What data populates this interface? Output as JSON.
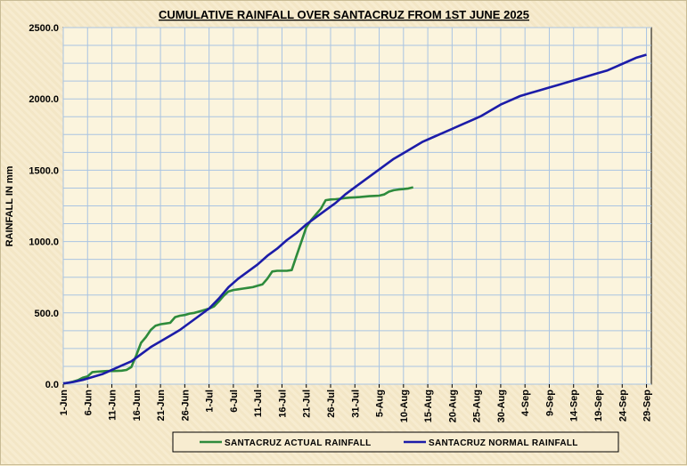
{
  "chart_data": {
    "type": "line",
    "title": "CUMULATIVE RAINFALL OVER SANTACRUZ FROM 1ST JUNE 2025",
    "xlabel": "",
    "ylabel": "RAINFALL IN mm",
    "ylim": [
      0,
      2500
    ],
    "yticks": [
      "0.0",
      "500.0",
      "1000.0",
      "1500.0",
      "2000.0",
      "2500.0"
    ],
    "x_range_days": [
      0,
      121
    ],
    "xtick_labels": [
      "1-Jun",
      "6-Jun",
      "11-Jun",
      "16-Jun",
      "21-Jun",
      "26-Jun",
      "1-Jul",
      "6-Jul",
      "11-Jul",
      "16-Jul",
      "21-Jul",
      "26-Jul",
      "31-Jul",
      "5-Aug",
      "10-Aug",
      "15-Aug",
      "20-Aug",
      "25-Aug",
      "30-Aug",
      "4-Sep",
      "9-Sep",
      "14-Sep",
      "19-Sep",
      "24-Sep",
      "29-Sep"
    ],
    "grid": true,
    "legend_position": "bottom",
    "series": [
      {
        "name": "SANTACRUZ  ACTUAL RAINFALL",
        "color": "#2e8b3c",
        "x": [
          0,
          1,
          2,
          3,
          4,
          5,
          6,
          7,
          8,
          9,
          10,
          11,
          12,
          13,
          14,
          15,
          16,
          17,
          18,
          19,
          20,
          21,
          22,
          23,
          24,
          25,
          26,
          27,
          28,
          29,
          30,
          31,
          32,
          33,
          34,
          35,
          36,
          37,
          38,
          39,
          40,
          41,
          42,
          43,
          44,
          45,
          46,
          47,
          48,
          49,
          50,
          51,
          52,
          53,
          54,
          55,
          56,
          57,
          58,
          59,
          60,
          61,
          62,
          63,
          64,
          65,
          66,
          67,
          68,
          69,
          70,
          71,
          72
        ],
        "y": [
          5,
          10,
          18,
          28,
          45,
          55,
          85,
          88,
          90,
          92,
          92,
          93,
          95,
          100,
          120,
          200,
          290,
          330,
          380,
          410,
          420,
          425,
          430,
          470,
          480,
          485,
          495,
          500,
          510,
          520,
          530,
          545,
          580,
          620,
          650,
          660,
          665,
          670,
          675,
          680,
          690,
          700,
          740,
          790,
          795,
          795,
          795,
          800,
          900,
          1000,
          1100,
          1150,
          1190,
          1230,
          1290,
          1295,
          1297,
          1300,
          1305,
          1308,
          1310,
          1312,
          1315,
          1318,
          1320,
          1322,
          1330,
          1350,
          1360,
          1365,
          1368,
          1372,
          1380
        ]
      },
      {
        "name": "SANTACRUZ  NORMAL RAINFALL",
        "color": "#1c1ca8",
        "x": [
          0,
          2,
          4,
          6,
          8,
          10,
          12,
          14,
          16,
          18,
          20,
          22,
          24,
          26,
          28,
          30,
          32,
          34,
          36,
          38,
          40,
          42,
          44,
          46,
          48,
          50,
          52,
          54,
          56,
          58,
          60,
          62,
          64,
          66,
          68,
          70,
          72,
          74,
          76,
          78,
          80,
          82,
          84,
          86,
          88,
          90,
          92,
          94,
          96,
          98,
          100,
          102,
          104,
          106,
          108,
          110,
          112,
          114,
          116,
          118,
          120
        ],
        "y": [
          5,
          15,
          30,
          50,
          70,
          100,
          130,
          160,
          210,
          260,
          300,
          340,
          380,
          430,
          480,
          530,
          600,
          680,
          740,
          790,
          840,
          900,
          950,
          1010,
          1060,
          1120,
          1170,
          1220,
          1270,
          1330,
          1380,
          1430,
          1480,
          1530,
          1580,
          1620,
          1660,
          1700,
          1730,
          1760,
          1790,
          1820,
          1850,
          1880,
          1920,
          1960,
          1990,
          2020,
          2040,
          2060,
          2080,
          2100,
          2120,
          2140,
          2160,
          2180,
          2200,
          2230,
          2260,
          2290,
          2310
        ]
      }
    ]
  }
}
